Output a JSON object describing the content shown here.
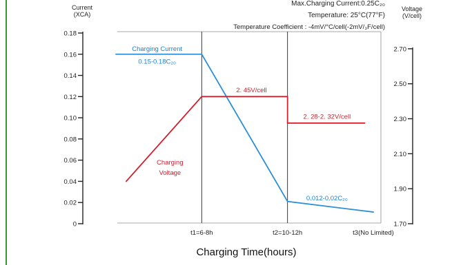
{
  "colors": {
    "page_bar": "#ffffff",
    "page_line": "#2e9a3a",
    "current_line": "#2b8fd8",
    "voltage_line": "#d0202e",
    "current_text": "#1a7fd1",
    "voltage_text": "#d0202e",
    "axis": "#222222",
    "grid": "#8a8a8a"
  },
  "chart_data": {
    "type": "line",
    "header_lines": [
      "Max.Charging Current:0.25C₂₀",
      "Temperature: 25°C(77°F)",
      "Temperature  Coefficient : -4mV/°C/cell(-2mV/₃F/cell)"
    ],
    "xlabel": "Charging Time(hours)",
    "x_categories": [
      "t1=6-8h",
      "t2=10-12h",
      "t3(No Limited)"
    ],
    "x_range": [
      0,
      3
    ],
    "y_left": {
      "label_lines": [
        "Current",
        "(XCA)"
      ],
      "range": [
        0,
        0.18
      ],
      "ticks": [
        {
          "value": 0,
          "label": "0"
        },
        {
          "value": 0.02,
          "label": "0.02"
        },
        {
          "value": 0.04,
          "label": "0.04"
        },
        {
          "value": 0.06,
          "label": "0.06"
        },
        {
          "value": 0.08,
          "label": "0.08"
        },
        {
          "value": 0.1,
          "label": "0.10"
        },
        {
          "value": 0.12,
          "label": "0.12"
        },
        {
          "value": 0.14,
          "label": "0.14"
        },
        {
          "value": 0.16,
          "label": "0.16"
        },
        {
          "value": 0.18,
          "label": "0.18"
        }
      ]
    },
    "y_right": {
      "label_lines": [
        "Voltage",
        "(V/cell)"
      ],
      "range": [
        1.7,
        2.79
      ],
      "ticks": [
        {
          "value": 1.7,
          "label": "1.70"
        },
        {
          "value": 1.9,
          "label": "1.90"
        },
        {
          "value": 2.1,
          "label": "2.10"
        },
        {
          "value": 2.3,
          "label": "2.30"
        },
        {
          "value": 2.5,
          "label": "2.50"
        },
        {
          "value": 2.7,
          "label": "2.70"
        }
      ]
    },
    "grid_vertical": true,
    "series": [
      {
        "name": "Charging Current",
        "axis": "left",
        "points": [
          [
            0,
            0.16
          ],
          [
            1,
            0.16
          ],
          [
            2,
            0.021
          ],
          [
            3,
            0.011
          ]
        ]
      },
      {
        "name": "Charging Voltage",
        "axis": "left",
        "points": [
          [
            0.12,
            0.04
          ],
          [
            1,
            0.12
          ],
          [
            2,
            0.12
          ],
          [
            2,
            0.095
          ],
          [
            2.9,
            0.095
          ]
        ]
      }
    ],
    "annotations": [
      {
        "text": "Charging Current",
        "series": "current",
        "x": 0.48,
        "y": 0.163,
        "anchor": "middle"
      },
      {
        "text": "0.15-0.18C₂₀",
        "series": "current",
        "x": 0.48,
        "y": 0.151,
        "anchor": "middle"
      },
      {
        "text": "2. 45V/cell",
        "series": "voltage",
        "x": 1.58,
        "y": 0.124,
        "anchor": "middle"
      },
      {
        "text": "2. 28-2. 32V/cell",
        "series": "voltage",
        "x": 2.46,
        "y": 0.099,
        "anchor": "middle"
      },
      {
        "text": "Charging",
        "series": "voltage",
        "x": 0.63,
        "y": 0.056,
        "anchor": "middle"
      },
      {
        "text": "Voltage",
        "series": "voltage",
        "x": 0.63,
        "y": 0.046,
        "anchor": "middle"
      },
      {
        "text": "0.012-0.02C₂₀",
        "series": "current",
        "x": 2.46,
        "y": 0.022,
        "anchor": "middle"
      }
    ]
  }
}
